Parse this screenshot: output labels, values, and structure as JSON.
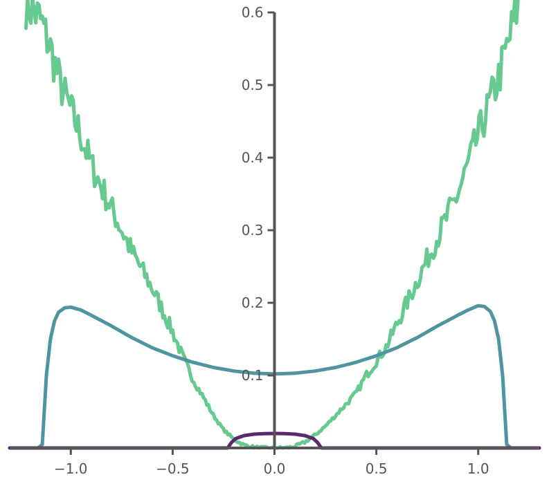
{
  "chart_data": {
    "type": "line",
    "xlim": [
      -1.3,
      1.3
    ],
    "ylim": [
      0,
      0.6
    ],
    "x_ticks": [
      {
        "value": -1.0,
        "label": "−1.0"
      },
      {
        "value": -0.5,
        "label": "−0.5"
      },
      {
        "value": 0.0,
        "label": "0.0"
      },
      {
        "value": 0.5,
        "label": "0.5"
      },
      {
        "value": 1.0,
        "label": "1.0"
      }
    ],
    "y_ticks": [
      {
        "value": 0.1,
        "label": "0.1"
      },
      {
        "value": 0.2,
        "label": "0.2"
      },
      {
        "value": 0.3,
        "label": "0.3"
      },
      {
        "value": 0.4,
        "label": "0.4"
      },
      {
        "value": 0.5,
        "label": "0.5"
      },
      {
        "value": 0.6,
        "label": "0.6"
      }
    ],
    "grid": false,
    "spines": "centered",
    "series": [
      {
        "color": "#66c990",
        "style": "noisy",
        "x": [
          -1.22,
          -1.15,
          -1.1,
          -1.05,
          -1.0,
          -0.95,
          -0.9,
          -0.85,
          -0.8,
          -0.75,
          -0.7,
          -0.65,
          -0.6,
          -0.55,
          -0.5,
          -0.45,
          -0.4,
          -0.35,
          -0.3,
          -0.25,
          -0.2,
          -0.15,
          -0.1,
          -0.05,
          0.0,
          0.05,
          0.1,
          0.15,
          0.2,
          0.25,
          0.3,
          0.35,
          0.4,
          0.45,
          0.5,
          0.55,
          0.6,
          0.65,
          0.7,
          0.75,
          0.8,
          0.85,
          0.9,
          0.95,
          1.0,
          1.05,
          1.1,
          1.15,
          1.2
        ],
        "y": [
          0.615,
          0.59,
          0.55,
          0.5,
          0.465,
          0.43,
          0.39,
          0.36,
          0.33,
          0.3,
          0.27,
          0.245,
          0.22,
          0.19,
          0.16,
          0.125,
          0.095,
          0.07,
          0.045,
          0.025,
          0.012,
          0.004,
          0.001,
          0.0,
          0.0,
          0.0,
          0.002,
          0.008,
          0.018,
          0.03,
          0.045,
          0.06,
          0.075,
          0.1,
          0.12,
          0.14,
          0.17,
          0.2,
          0.23,
          0.26,
          0.29,
          0.32,
          0.35,
          0.39,
          0.43,
          0.47,
          0.51,
          0.56,
          0.615
        ]
      },
      {
        "color": "#4e95a0",
        "style": "smooth",
        "x": [
          -1.3,
          -1.16,
          -1.14,
          -1.12,
          -1.1,
          -1.08,
          -1.06,
          -1.03,
          -1.0,
          -0.95,
          -0.9,
          -0.8,
          -0.7,
          -0.6,
          -0.5,
          -0.4,
          -0.3,
          -0.2,
          -0.1,
          0.0,
          0.1,
          0.2,
          0.3,
          0.4,
          0.5,
          0.6,
          0.7,
          0.8,
          0.9,
          0.95,
          1.0,
          1.03,
          1.06,
          1.08,
          1.1,
          1.12,
          1.14,
          1.16,
          1.3
        ],
        "y": [
          0.0,
          0.0,
          0.005,
          0.1,
          0.15,
          0.175,
          0.187,
          0.193,
          0.194,
          0.19,
          0.183,
          0.168,
          0.152,
          0.138,
          0.127,
          0.118,
          0.111,
          0.106,
          0.103,
          0.102,
          0.103,
          0.106,
          0.111,
          0.118,
          0.127,
          0.138,
          0.152,
          0.168,
          0.183,
          0.19,
          0.196,
          0.195,
          0.188,
          0.175,
          0.15,
          0.1,
          0.005,
          0.0,
          0.0
        ]
      },
      {
        "color": "#5a2a6a",
        "style": "smooth",
        "x": [
          -1.3,
          -0.23,
          -0.21,
          -0.19,
          -0.15,
          -0.1,
          -0.05,
          0.0,
          0.05,
          0.1,
          0.15,
          0.19,
          0.21,
          0.23,
          1.3
        ],
        "y": [
          0.0,
          0.0,
          0.008,
          0.013,
          0.017,
          0.019,
          0.0198,
          0.02,
          0.0198,
          0.019,
          0.017,
          0.013,
          0.008,
          0.0,
          0.0
        ]
      }
    ]
  }
}
